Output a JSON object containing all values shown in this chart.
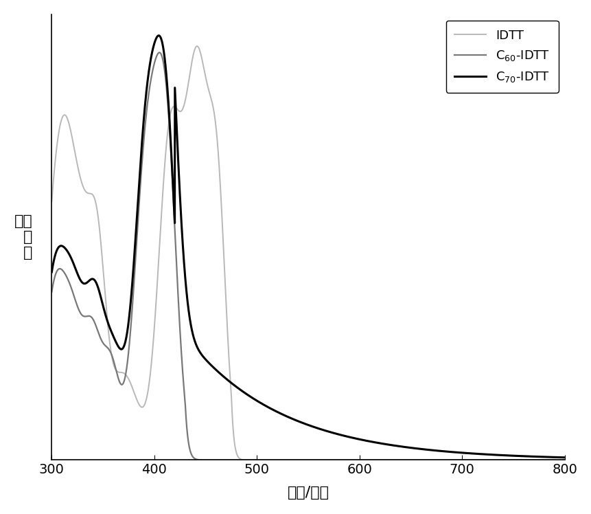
{
  "xlabel": "波长/纳米",
  "ylabel": "吸收\n强\n度",
  "xlim": [
    300,
    800
  ],
  "ylim": [
    0,
    1.05
  ],
  "xticks": [
    300,
    400,
    500,
    600,
    700,
    800
  ],
  "colors": {
    "IDTT": "#b8b8b8",
    "C60_IDTT": "#787878",
    "C70_IDTT": "#000000"
  },
  "linewidths": {
    "IDTT": 1.4,
    "C60_IDTT": 1.6,
    "C70_IDTT": 2.2
  },
  "legend_labels": [
    "IDTT",
    "C$_{60}$-IDTT",
    "C$_{70}$-IDTT"
  ],
  "background_color": "#ffffff"
}
